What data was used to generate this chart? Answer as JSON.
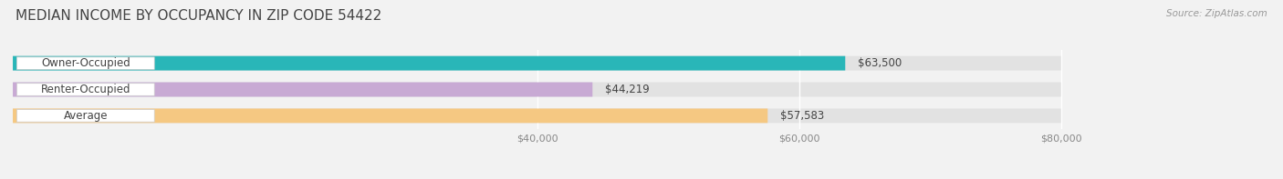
{
  "title": "MEDIAN INCOME BY OCCUPANCY IN ZIP CODE 54422",
  "source": "Source: ZipAtlas.com",
  "categories": [
    "Owner-Occupied",
    "Renter-Occupied",
    "Average"
  ],
  "values": [
    63500,
    44219,
    57583
  ],
  "labels": [
    "$63,500",
    "$44,219",
    "$57,583"
  ],
  "bar_colors": [
    "#29b6b8",
    "#c8aad4",
    "#f5c882"
  ],
  "xlim_data": [
    0,
    80000
  ],
  "xlim_display": [
    0,
    92000
  ],
  "xticks": [
    40000,
    60000,
    80000
  ],
  "xtick_labels": [
    "$40,000",
    "$60,000",
    "$80,000"
  ],
  "background_color": "#f2f2f2",
  "bar_bg_color": "#e2e2e2",
  "title_fontsize": 11,
  "label_fontsize": 8.5,
  "cat_fontsize": 8.5,
  "tick_fontsize": 8,
  "source_fontsize": 7.5
}
